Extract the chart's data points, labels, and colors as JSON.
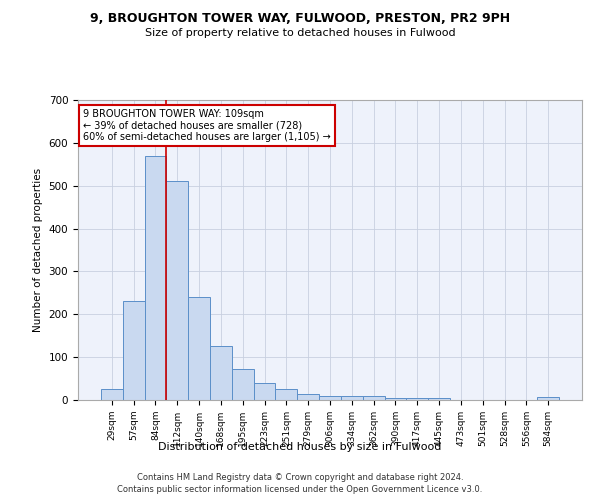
{
  "title_line1": "9, BROUGHTON TOWER WAY, FULWOOD, PRESTON, PR2 9PH",
  "title_line2": "Size of property relative to detached houses in Fulwood",
  "xlabel": "Distribution of detached houses by size in Fulwood",
  "ylabel": "Number of detached properties",
  "bin_labels": [
    "29sqm",
    "57sqm",
    "84sqm",
    "112sqm",
    "140sqm",
    "168sqm",
    "195sqm",
    "223sqm",
    "251sqm",
    "279sqm",
    "306sqm",
    "334sqm",
    "362sqm",
    "390sqm",
    "417sqm",
    "445sqm",
    "473sqm",
    "501sqm",
    "528sqm",
    "556sqm",
    "584sqm"
  ],
  "bar_values": [
    25,
    230,
    570,
    510,
    240,
    125,
    72,
    40,
    25,
    15,
    10,
    10,
    10,
    5,
    5,
    5,
    0,
    0,
    0,
    0,
    8
  ],
  "bar_color": "#c9d9f0",
  "bar_edge_color": "#5b8fc9",
  "vline_x_index": 2.5,
  "vline_color": "#cc0000",
  "annotation_text": "9 BROUGHTON TOWER WAY: 109sqm\n← 39% of detached houses are smaller (728)\n60% of semi-detached houses are larger (1,105) →",
  "annotation_box_color": "#ffffff",
  "annotation_box_edge_color": "#cc0000",
  "ylim": [
    0,
    700
  ],
  "yticks": [
    0,
    100,
    200,
    300,
    400,
    500,
    600,
    700
  ],
  "footer_line1": "Contains HM Land Registry data © Crown copyright and database right 2024.",
  "footer_line2": "Contains public sector information licensed under the Open Government Licence v3.0.",
  "bg_color": "#eef2fb",
  "grid_color": "#c8d0e0"
}
